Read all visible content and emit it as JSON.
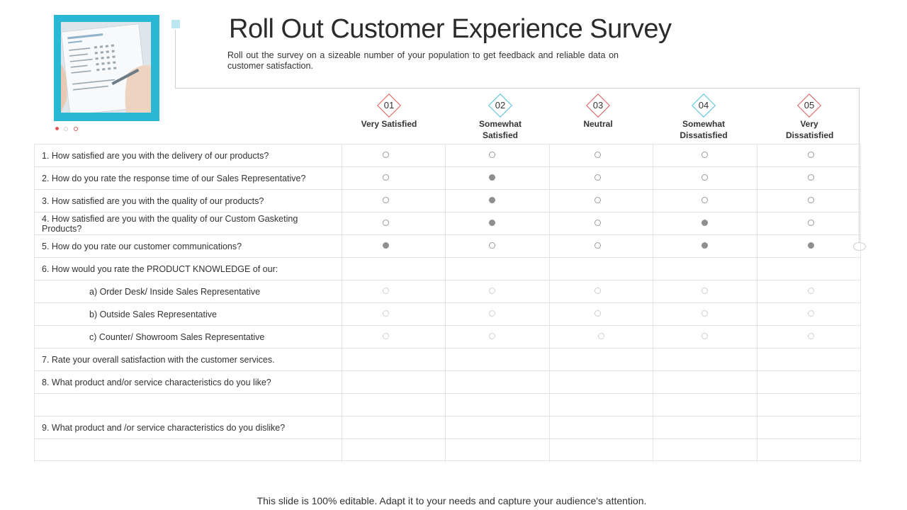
{
  "title": "Roll Out Customer Experience Survey",
  "subtitle": "Roll out the survey on a sizeable number of your population to get feedback and reliable data on customer satisfaction.",
  "colors": {
    "accent_blue": "#29b8d3",
    "accent_red": "#e05a5a",
    "filled_radio": "#8f8f8f"
  },
  "columns": [
    {
      "num": "01",
      "label": "Very Satisfied"
    },
    {
      "num": "02",
      "label": "Somewhat Satisfied"
    },
    {
      "num": "03",
      "label": "Neutral"
    },
    {
      "num": "04",
      "label": "Somewhat Dissatisfied"
    },
    {
      "num": "05",
      "label": "Very Dissatisfied"
    }
  ],
  "rows": [
    {
      "text": "1. How satisfied are you with the delivery  of our products?",
      "radios": [
        0,
        0,
        0,
        0,
        0
      ]
    },
    {
      "text": "2. How do you rate the response time of our Sales Representative?",
      "radios": [
        0,
        1,
        0,
        0,
        0
      ]
    },
    {
      "text": "3. How satisfied are you with the quality of our products?",
      "radios": [
        0,
        1,
        0,
        0,
        0
      ]
    },
    {
      "text": "4. How satisfied are you with the quality of our Custom Gasketing Products?",
      "radios": [
        0,
        1,
        0,
        1,
        0
      ]
    },
    {
      "text": "5. How do you rate our customer communications?",
      "radios": [
        1,
        0,
        0,
        1,
        1
      ]
    },
    {
      "text": "6. How would you rate the PRODUCT  KNOWLEDGE  of our:"
    },
    {
      "text": "a) Order Desk/ Inside Sales Representative",
      "radios": [
        0,
        0,
        0,
        0,
        0
      ]
    },
    {
      "text": "b) Outside Sales Representative",
      "radios": [
        0,
        0,
        0,
        0,
        0
      ]
    },
    {
      "text": "c) Counter/ Showroom Sales Representative",
      "radios": [
        0,
        0,
        0,
        0,
        0
      ]
    },
    {
      "text": "7. Rate your overall  satisfaction with the customer services."
    },
    {
      "text": "8. What product and/or service characteristics do you like?"
    },
    {
      "text": ""
    },
    {
      "text": "9. What product and /or service characteristics do you dislike?"
    },
    {
      "text": ""
    }
  ],
  "footer": "This slide is 100% editable. Adapt it to your needs and capture your audience's attention."
}
